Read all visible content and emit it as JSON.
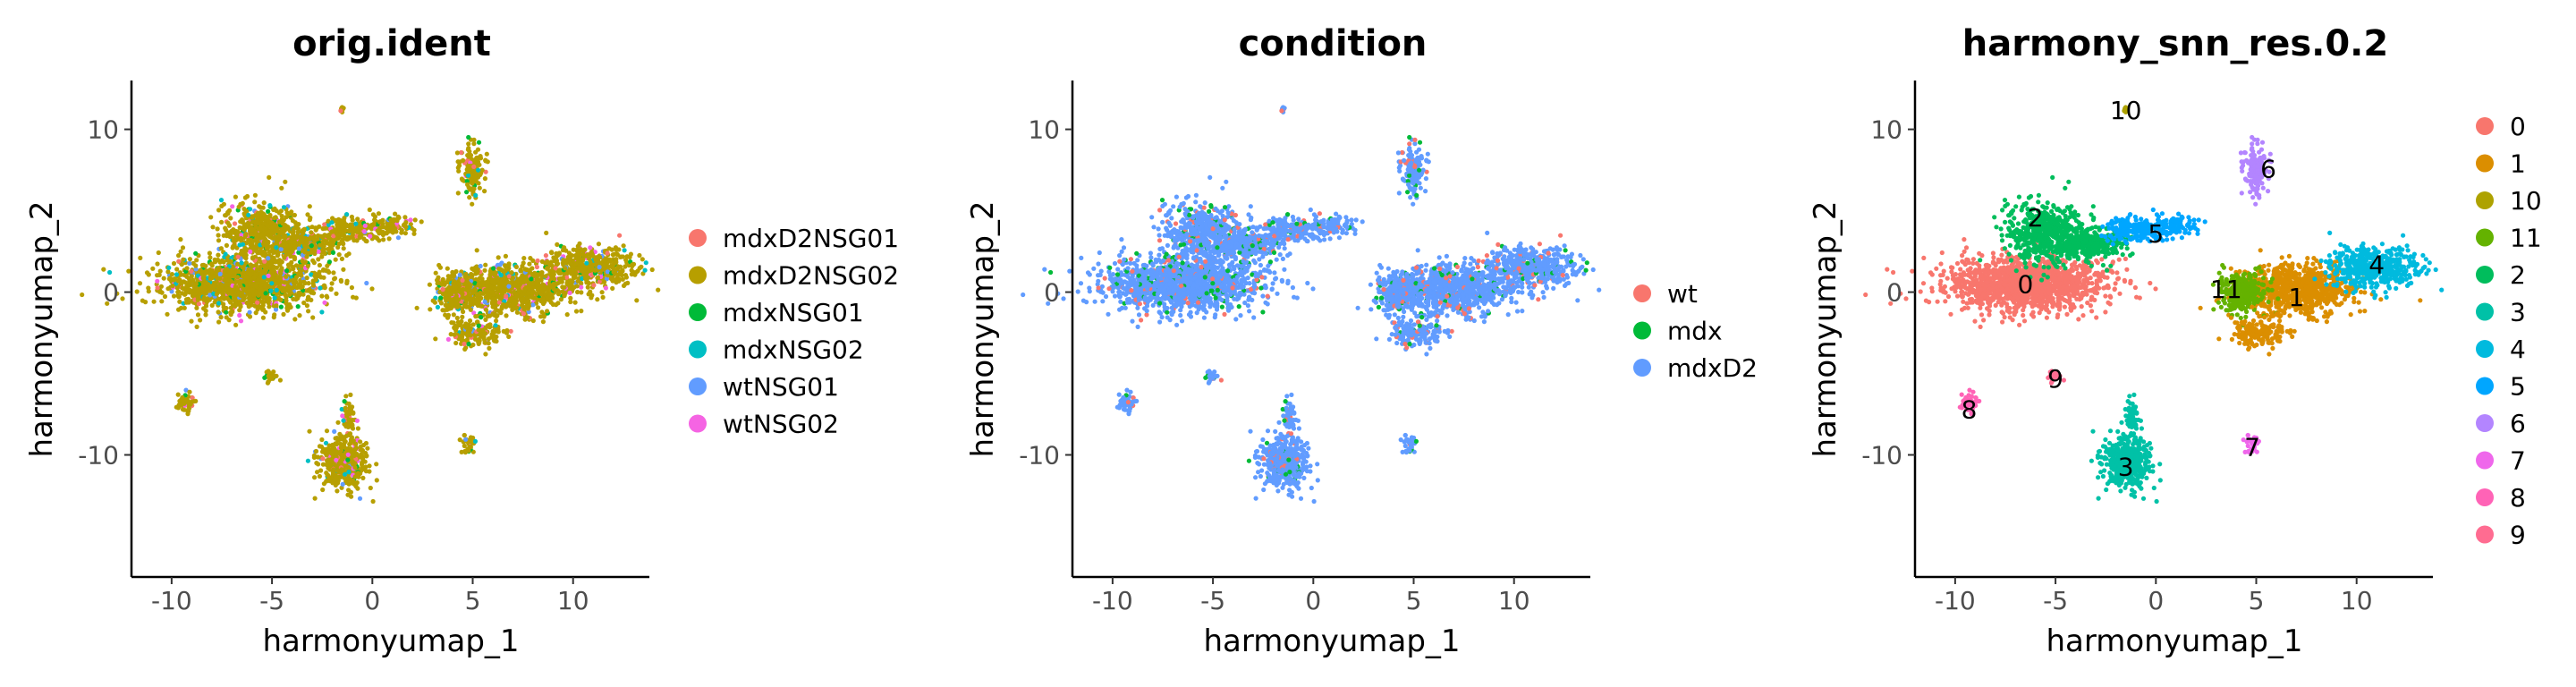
{
  "figure": {
    "panels": [
      {
        "title": "orig.ident",
        "legend_title": ""
      },
      {
        "title": "condition",
        "legend_title": ""
      },
      {
        "title": "harmony_snn_res.0.2",
        "legend_title": ""
      }
    ]
  },
  "chart_data": [
    {
      "type": "scatter",
      "title": "orig.ident",
      "xlabel": "harmonyumap_1",
      "ylabel": "harmonyumap_2",
      "xlim": [
        -12,
        13.8
      ],
      "ylim": [
        -17.5,
        13
      ],
      "xticks": [
        -10,
        -5,
        0,
        5,
        10
      ],
      "xtick_labels": [
        "-10",
        "-5",
        "0",
        "5",
        "10"
      ],
      "yticks": [
        -10,
        0,
        10
      ],
      "ytick_labels": [
        "-10",
        "0",
        "10"
      ],
      "grid": false,
      "legend_position": "right",
      "series": [
        {
          "name": "mdxD2NSG01",
          "color": "#F8766D"
        },
        {
          "name": "mdxD2NSG02",
          "color": "#B79F00"
        },
        {
          "name": "mdxNSG01",
          "color": "#00BA38"
        },
        {
          "name": "mdxNSG02",
          "color": "#00BFC4"
        },
        {
          "name": "wtNSG01",
          "color": "#619CFF"
        },
        {
          "name": "wtNSG02",
          "color": "#F564E3"
        }
      ],
      "dominant_series": "mdxD2NSG02"
    },
    {
      "type": "scatter",
      "title": "condition",
      "xlabel": "harmonyumap_1",
      "ylabel": "harmonyumap_2",
      "xlim": [
        -12,
        13.8
      ],
      "ylim": [
        -17.5,
        13
      ],
      "xticks": [
        -10,
        -5,
        0,
        5,
        10
      ],
      "xtick_labels": [
        "-10",
        "-5",
        "0",
        "5",
        "10"
      ],
      "yticks": [
        -10,
        0,
        10
      ],
      "ytick_labels": [
        "-10",
        "0",
        "10"
      ],
      "grid": false,
      "legend_position": "right",
      "series": [
        {
          "name": "wt",
          "color": "#F8766D"
        },
        {
          "name": "mdx",
          "color": "#00BA38"
        },
        {
          "name": "mdxD2",
          "color": "#619CFF"
        }
      ],
      "dominant_series": "mdxD2"
    },
    {
      "type": "scatter",
      "title": "harmony_snn_res.0.2",
      "xlabel": "harmonyumap_1",
      "ylabel": "harmonyumap_2",
      "xlim": [
        -12,
        13.8
      ],
      "ylim": [
        -17.5,
        13
      ],
      "xticks": [
        -10,
        -5,
        0,
        5,
        10
      ],
      "xtick_labels": [
        "-10",
        "-5",
        "0",
        "5",
        "10"
      ],
      "yticks": [
        -10,
        0,
        10
      ],
      "ytick_labels": [
        "-10",
        "0",
        "10"
      ],
      "grid": false,
      "legend_position": "right",
      "series": [
        {
          "name": "0",
          "color": "#F8766D"
        },
        {
          "name": "1",
          "color": "#DB8E00"
        },
        {
          "name": "10",
          "color": "#AEA200"
        },
        {
          "name": "11",
          "color": "#64B200"
        },
        {
          "name": "2",
          "color": "#00BD5C"
        },
        {
          "name": "3",
          "color": "#00C1A7"
        },
        {
          "name": "4",
          "color": "#00BADE"
        },
        {
          "name": "5",
          "color": "#00A6FF"
        },
        {
          "name": "6",
          "color": "#B385FF"
        },
        {
          "name": "7",
          "color": "#EF67EB"
        },
        {
          "name": "8",
          "color": "#FF63B6"
        },
        {
          "name": "9",
          "color": "#FF6C91"
        }
      ],
      "cluster_labels": [
        {
          "label": "0",
          "x": -6.5,
          "y": 0.5
        },
        {
          "label": "1",
          "x": 7.0,
          "y": -0.3
        },
        {
          "label": "10",
          "x": -1.5,
          "y": 11.2
        },
        {
          "label": "11",
          "x": 3.5,
          "y": 0.2
        },
        {
          "label": "2",
          "x": -6.0,
          "y": 4.6
        },
        {
          "label": "3",
          "x": -1.5,
          "y": -10.7
        },
        {
          "label": "4",
          "x": 11.0,
          "y": 1.7
        },
        {
          "label": "5",
          "x": 0.0,
          "y": 3.6
        },
        {
          "label": "6",
          "x": 5.6,
          "y": 7.6
        },
        {
          "label": "7",
          "x": 4.8,
          "y": -9.5
        },
        {
          "label": "8",
          "x": -9.3,
          "y": -7.2
        },
        {
          "label": "9",
          "x": -5.0,
          "y": -5.3
        }
      ]
    }
  ]
}
